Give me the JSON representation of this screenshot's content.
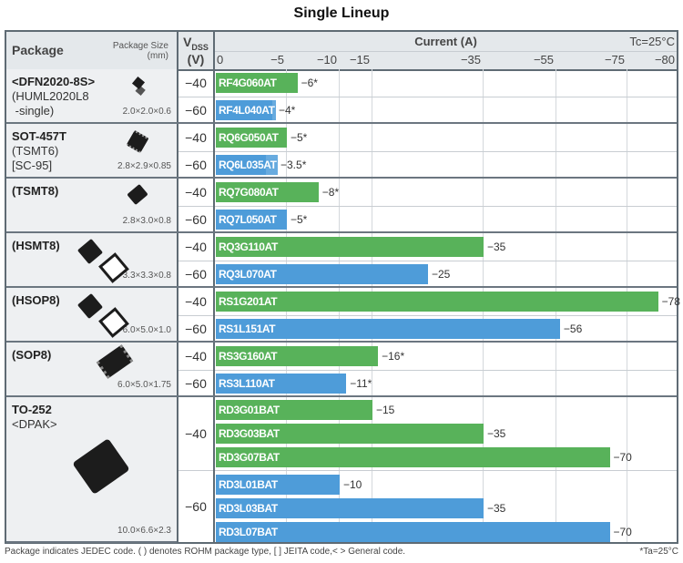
{
  "title": "Single Lineup",
  "header": {
    "package": "Package",
    "package_size": "Package Size",
    "package_size_unit": "(mm)",
    "vdss": "V",
    "vdss_sub": "DSS",
    "vdss_unit": "(V)",
    "current": "Current (A)",
    "condition": "Tc=25°C"
  },
  "colors": {
    "vdss_40": "#58b25a",
    "vdss_60": "#4e9cd9"
  },
  "chart_data": {
    "type": "bar",
    "orientation": "horizontal",
    "xlabel": "Current (A)",
    "axis_ticks": [
      "0",
      "−5",
      "−10",
      "−15",
      "−35",
      "−55",
      "−75",
      "−80"
    ],
    "tick_values": [
      0,
      -5,
      -10,
      -15,
      -35,
      -55,
      -75,
      -80
    ],
    "scale": "piecewise (non-linear)",
    "xlim": [
      0,
      -80
    ],
    "grid": true,
    "groups": [
      {
        "package": "<DFN2020-8S>",
        "package_lines": [
          "(HUML2020L8",
          " -single)"
        ],
        "size": "2.0×2.0×0.6",
        "icon": "dfn-chip-icon",
        "rows": [
          {
            "vdss": "−40",
            "bars": [
              {
                "part": "RF4G060AT",
                "value": -6,
                "label": "−6*"
              }
            ]
          },
          {
            "vdss": "−60",
            "bars": [
              {
                "part": "RF4L040AT",
                "value": -4,
                "label": "−4*"
              }
            ]
          }
        ]
      },
      {
        "package": "SOT-457T",
        "package_lines": [
          "(TSMT6)",
          "[SC-95]"
        ],
        "size": "2.8×2.9×0.85",
        "icon": "sot-chip-icon",
        "rows": [
          {
            "vdss": "−40",
            "bars": [
              {
                "part": "RQ6G050AT",
                "value": -5,
                "label": "−5*"
              }
            ]
          },
          {
            "vdss": "−60",
            "bars": [
              {
                "part": "RQ6L035AT",
                "value": -3.5,
                "label": "−3.5*"
              }
            ]
          }
        ]
      },
      {
        "package": "(TSMT8)",
        "package_lines": [],
        "size": "2.8×3.0×0.8",
        "icon": "tsmt8-chip-icon",
        "rows": [
          {
            "vdss": "−40",
            "bars": [
              {
                "part": "RQ7G080AT",
                "value": -8,
                "label": "−8*"
              }
            ]
          },
          {
            "vdss": "−60",
            "bars": [
              {
                "part": "RQ7L050AT",
                "value": -5,
                "label": "−5*"
              }
            ]
          }
        ]
      },
      {
        "package": "(HSMT8)",
        "package_lines": [],
        "size": "3.3×3.3×0.8",
        "icon": "hsmt8-chip-icon",
        "rows": [
          {
            "vdss": "−40",
            "bars": [
              {
                "part": "RQ3G110AT",
                "value": -35,
                "label": "−35"
              }
            ]
          },
          {
            "vdss": "−60",
            "bars": [
              {
                "part": "RQ3L070AT",
                "value": -25,
                "label": "−25"
              }
            ]
          }
        ]
      },
      {
        "package": "(HSOP8)",
        "package_lines": [],
        "size": "6.0×5.0×1.0",
        "icon": "hsop8-chip-icon",
        "rows": [
          {
            "vdss": "−40",
            "bars": [
              {
                "part": "RS1G201AT",
                "value": -78,
                "label": "−78"
              }
            ]
          },
          {
            "vdss": "−60",
            "bars": [
              {
                "part": "RS1L151AT",
                "value": -56,
                "label": "−56"
              }
            ]
          }
        ]
      },
      {
        "package": "(SOP8)",
        "package_lines": [],
        "size": "6.0×5.0×1.75",
        "icon": "sop8-chip-icon",
        "rows": [
          {
            "vdss": "−40",
            "bars": [
              {
                "part": "RS3G160AT",
                "value": -16,
                "label": "−16*"
              }
            ]
          },
          {
            "vdss": "−60",
            "bars": [
              {
                "part": "RS3L110AT",
                "value": -11,
                "label": "−11*"
              }
            ]
          }
        ]
      },
      {
        "package": "TO-252",
        "package_lines": [
          "<DPAK>"
        ],
        "size": "10.0×6.6×2.3",
        "icon": "dpak-chip-icon",
        "rows": [
          {
            "vdss": "−40",
            "bars": [
              {
                "part": "RD3G01BAT",
                "value": -15,
                "label": "−15"
              },
              {
                "part": "RD3G03BAT",
                "value": -35,
                "label": "−35"
              },
              {
                "part": "RD3G07BAT",
                "value": -70,
                "label": "−70"
              }
            ]
          },
          {
            "vdss": "−60",
            "bars": [
              {
                "part": "RD3L01BAT",
                "value": -10,
                "label": "−10"
              },
              {
                "part": "RD3L03BAT",
                "value": -35,
                "label": "−35"
              },
              {
                "part": "RD3L07BAT",
                "value": -70,
                "label": "−70"
              }
            ]
          }
        ]
      }
    ]
  },
  "footer": {
    "note": "Package indicates JEDEC code. ( ) denotes ROHM package type, [ ] JEITA code,< > General code.",
    "ta_note": "*Ta=25°C"
  }
}
